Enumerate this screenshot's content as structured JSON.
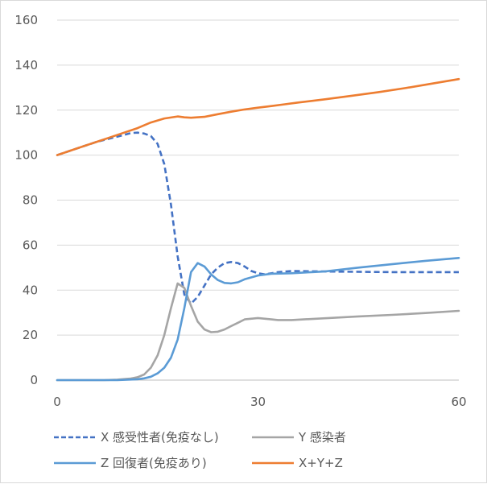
{
  "chart_data": {
    "type": "line",
    "title": "",
    "xlabel": "",
    "ylabel": "",
    "xlim": [
      0,
      60
    ],
    "ylim": [
      0,
      160
    ],
    "x_ticks": [
      "0",
      "30",
      "60"
    ],
    "y_ticks": [
      "0",
      "20",
      "40",
      "60",
      "80",
      "100",
      "120",
      "140",
      "160"
    ],
    "grid": "horizontal",
    "legend_position": "bottom",
    "series": [
      {
        "name": "X 感受性者(免疫なし)",
        "color": "#4472c4",
        "dash": "dashed",
        "points": [
          [
            0,
            100
          ],
          [
            2,
            102
          ],
          [
            4,
            104
          ],
          [
            6,
            106
          ],
          [
            8,
            107.5
          ],
          [
            10,
            109
          ],
          [
            11,
            109.8
          ],
          [
            12,
            110
          ],
          [
            13,
            109.6
          ],
          [
            14,
            108.5
          ],
          [
            15,
            105
          ],
          [
            16,
            96
          ],
          [
            17,
            78
          ],
          [
            18,
            55
          ],
          [
            19,
            38
          ],
          [
            20,
            34
          ],
          [
            21,
            37
          ],
          [
            22,
            42
          ],
          [
            23,
            47
          ],
          [
            24,
            50
          ],
          [
            25,
            52
          ],
          [
            26,
            52.5
          ],
          [
            27,
            52
          ],
          [
            28,
            50.5
          ],
          [
            29,
            48.5
          ],
          [
            30,
            47.5
          ],
          [
            31,
            47
          ],
          [
            33,
            48
          ],
          [
            35,
            48.5
          ],
          [
            40,
            48.3
          ],
          [
            50,
            48
          ],
          [
            60,
            48
          ]
        ]
      },
      {
        "name": "Y 感染者",
        "color": "#a5a5a5",
        "dash": "solid",
        "points": [
          [
            0,
            0
          ],
          [
            7,
            0
          ],
          [
            9,
            0.2
          ],
          [
            11,
            0.7
          ],
          [
            12,
            1.3
          ],
          [
            13,
            2.5
          ],
          [
            14,
            5.5
          ],
          [
            15,
            11
          ],
          [
            16,
            20
          ],
          [
            17,
            32
          ],
          [
            18,
            43
          ],
          [
            19,
            41
          ],
          [
            20,
            33
          ],
          [
            21,
            26
          ],
          [
            22,
            22.5
          ],
          [
            23,
            21.3
          ],
          [
            24,
            21.5
          ],
          [
            25,
            22.5
          ],
          [
            26,
            24
          ],
          [
            27,
            25.5
          ],
          [
            28,
            27
          ],
          [
            30,
            27.6
          ],
          [
            32,
            27
          ],
          [
            33,
            26.7
          ],
          [
            35,
            26.7
          ],
          [
            40,
            27.5
          ],
          [
            45,
            28.3
          ],
          [
            50,
            29
          ],
          [
            55,
            29.8
          ],
          [
            60,
            30.8
          ]
        ]
      },
      {
        "name": "Z 回復者(免疫あり)",
        "color": "#5b9bd5",
        "dash": "solid",
        "points": [
          [
            0,
            0
          ],
          [
            9,
            0
          ],
          [
            12,
            0.4
          ],
          [
            13,
            0.8
          ],
          [
            14,
            1.5
          ],
          [
            15,
            3
          ],
          [
            16,
            5.5
          ],
          [
            17,
            10
          ],
          [
            18,
            18
          ],
          [
            19,
            32
          ],
          [
            20,
            48
          ],
          [
            21,
            52
          ],
          [
            22,
            50.5
          ],
          [
            23,
            47
          ],
          [
            24,
            44.5
          ],
          [
            25,
            43.2
          ],
          [
            26,
            43
          ],
          [
            27,
            43.5
          ],
          [
            28,
            44.8
          ],
          [
            30,
            46.5
          ],
          [
            32,
            47.3
          ],
          [
            35,
            47.5
          ],
          [
            38,
            48
          ],
          [
            40,
            48.3
          ],
          [
            45,
            50
          ],
          [
            50,
            51.5
          ],
          [
            55,
            53
          ],
          [
            60,
            54.3
          ]
        ]
      },
      {
        "name": "X+Y+Z",
        "color": "#ed7d31",
        "dash": "solid",
        "points": [
          [
            0,
            100
          ],
          [
            2,
            102
          ],
          [
            4,
            104
          ],
          [
            6,
            106
          ],
          [
            8,
            108
          ],
          [
            10,
            110
          ],
          [
            12,
            112
          ],
          [
            14,
            114.5
          ],
          [
            16,
            116.3
          ],
          [
            18,
            117.2
          ],
          [
            19,
            116.8
          ],
          [
            20,
            116.6
          ],
          [
            22,
            117
          ],
          [
            24,
            118.2
          ],
          [
            26,
            119.3
          ],
          [
            28,
            120.3
          ],
          [
            30,
            121.1
          ],
          [
            32,
            121.8
          ],
          [
            34,
            122.6
          ],
          [
            36,
            123.4
          ],
          [
            40,
            124.8
          ],
          [
            44,
            126.4
          ],
          [
            48,
            128
          ],
          [
            52,
            129.8
          ],
          [
            56,
            131.8
          ],
          [
            60,
            133.8
          ]
        ]
      }
    ]
  }
}
